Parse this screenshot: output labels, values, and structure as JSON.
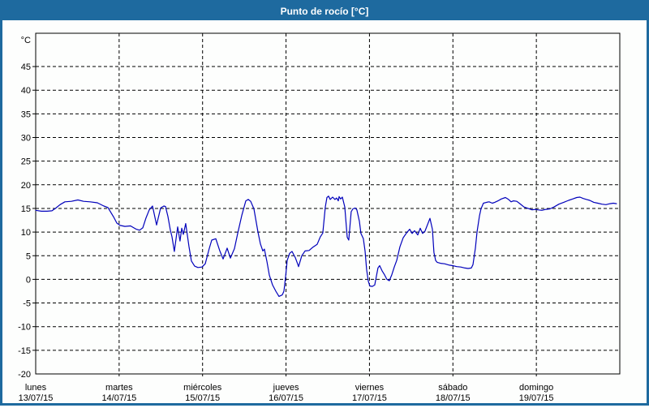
{
  "window": {
    "title": "Punto de rocío [°C]"
  },
  "colors": {
    "titlebar_bg": "#1e6a9f",
    "titlebar_text": "#ffffff",
    "window_border": "#1e6a9f",
    "plot_bg": "#ffffff",
    "grid": "#000000",
    "axis": "#000000",
    "text": "#000000",
    "line": "#0000bb"
  },
  "chart_data": {
    "type": "line",
    "title": "Punto de rocío [°C]",
    "y_unit": "°C",
    "ylim": [
      -20,
      52
    ],
    "ytick_step": 5,
    "yticks": [
      45,
      40,
      35,
      30,
      25,
      20,
      15,
      10,
      5,
      0,
      -5,
      -10,
      -15,
      -20
    ],
    "grid": "dashed",
    "legend": "none",
    "x_axis_days": [
      {
        "name": "lunes",
        "date": "13/07/15"
      },
      {
        "name": "martes",
        "date": "14/07/15"
      },
      {
        "name": "miércoles",
        "date": "15/07/15"
      },
      {
        "name": "jueves",
        "date": "16/07/15"
      },
      {
        "name": "viernes",
        "date": "17/07/15"
      },
      {
        "name": "sábado",
        "date": "18/07/15"
      },
      {
        "name": "domingo",
        "date": "19/07/15"
      }
    ],
    "series": [
      {
        "name": "Punto de rocío",
        "color": "#0000bb",
        "x_unit": "days_from_2015-07-13",
        "points": [
          [
            0.0,
            14.6
          ],
          [
            0.068,
            14.4
          ],
          [
            0.136,
            14.4
          ],
          [
            0.194,
            14.5
          ],
          [
            0.243,
            15.1
          ],
          [
            0.292,
            15.8
          ],
          [
            0.35,
            16.4
          ],
          [
            0.428,
            16.5
          ],
          [
            0.506,
            16.8
          ],
          [
            0.574,
            16.5
          ],
          [
            0.651,
            16.4
          ],
          [
            0.739,
            16.2
          ],
          [
            0.817,
            15.5
          ],
          [
            0.865,
            15.2
          ],
          [
            0.933,
            13.2
          ],
          [
            0.972,
            11.9
          ],
          [
            1.011,
            11.4
          ],
          [
            1.069,
            11.2
          ],
          [
            1.137,
            11.3
          ],
          [
            1.206,
            10.6
          ],
          [
            1.244,
            10.4
          ],
          [
            1.283,
            10.9
          ],
          [
            1.322,
            13.0
          ],
          [
            1.361,
            14.7
          ],
          [
            1.4,
            15.5
          ],
          [
            1.449,
            11.5
          ],
          [
            1.497,
            15.1
          ],
          [
            1.536,
            15.5
          ],
          [
            1.556,
            15.4
          ],
          [
            1.585,
            13.3
          ],
          [
            1.614,
            10.4
          ],
          [
            1.633,
            9.0
          ],
          [
            1.662,
            5.9
          ],
          [
            1.701,
            11.1
          ],
          [
            1.73,
            8.1
          ],
          [
            1.75,
            10.8
          ],
          [
            1.769,
            9.5
          ],
          [
            1.798,
            11.8
          ],
          [
            1.837,
            7.0
          ],
          [
            1.866,
            3.9
          ],
          [
            1.905,
            2.8
          ],
          [
            1.944,
            2.5
          ],
          [
            1.993,
            2.6
          ],
          [
            2.032,
            3.3
          ],
          [
            2.08,
            6.5
          ],
          [
            2.11,
            8.3
          ],
          [
            2.158,
            8.6
          ],
          [
            2.207,
            6.0
          ],
          [
            2.246,
            4.3
          ],
          [
            2.294,
            6.6
          ],
          [
            2.333,
            4.5
          ],
          [
            2.382,
            6.5
          ],
          [
            2.421,
            9.7
          ],
          [
            2.469,
            13.5
          ],
          [
            2.518,
            16.6
          ],
          [
            2.547,
            16.9
          ],
          [
            2.576,
            16.5
          ],
          [
            2.615,
            14.9
          ],
          [
            2.664,
            10.0
          ],
          [
            2.693,
            7.5
          ],
          [
            2.722,
            6.0
          ],
          [
            2.741,
            6.4
          ],
          [
            2.771,
            3.8
          ],
          [
            2.8,
            0.9
          ],
          [
            2.839,
            -1.2
          ],
          [
            2.878,
            -2.5
          ],
          [
            2.916,
            -3.6
          ],
          [
            2.955,
            -3.3
          ],
          [
            2.975,
            -2.5
          ],
          [
            2.994,
            0.5
          ],
          [
            3.014,
            4.0
          ],
          [
            3.043,
            5.5
          ],
          [
            3.072,
            5.9
          ],
          [
            3.111,
            4.6
          ],
          [
            3.14,
            3.2
          ],
          [
            3.15,
            2.7
          ],
          [
            3.189,
            5.0
          ],
          [
            3.228,
            6.0
          ],
          [
            3.276,
            6.1
          ],
          [
            3.315,
            6.7
          ],
          [
            3.373,
            7.4
          ],
          [
            3.412,
            9.0
          ],
          [
            3.441,
            9.8
          ],
          [
            3.471,
            15.3
          ],
          [
            3.49,
            17.3
          ],
          [
            3.51,
            17.6
          ],
          [
            3.529,
            16.9
          ],
          [
            3.558,
            17.4
          ],
          [
            3.587,
            16.9
          ],
          [
            3.606,
            17.2
          ],
          [
            3.626,
            16.6
          ],
          [
            3.636,
            17.5
          ],
          [
            3.655,
            17.0
          ],
          [
            3.675,
            17.4
          ],
          [
            3.704,
            15.3
          ],
          [
            3.733,
            8.9
          ],
          [
            3.752,
            8.3
          ],
          [
            3.781,
            14.3
          ],
          [
            3.801,
            14.9
          ],
          [
            3.83,
            15.1
          ],
          [
            3.849,
            14.7
          ],
          [
            3.879,
            12.3
          ],
          [
            3.898,
            9.7
          ],
          [
            3.927,
            8.6
          ],
          [
            3.947,
            6.0
          ],
          [
            3.966,
            2.1
          ],
          [
            3.986,
            -0.4
          ],
          [
            4.005,
            -1.4
          ],
          [
            4.034,
            -1.5
          ],
          [
            4.063,
            -1.2
          ],
          [
            4.102,
            2.4
          ],
          [
            4.122,
            2.9
          ],
          [
            4.151,
            1.8
          ],
          [
            4.18,
            1.0
          ],
          [
            4.209,
            0.0
          ],
          [
            4.238,
            -0.3
          ],
          [
            4.268,
            1.0
          ],
          [
            4.297,
            2.6
          ],
          [
            4.326,
            4.0
          ],
          [
            4.365,
            6.9
          ],
          [
            4.404,
            8.8
          ],
          [
            4.443,
            9.8
          ],
          [
            4.482,
            10.6
          ],
          [
            4.511,
            9.7
          ],
          [
            4.54,
            10.3
          ],
          [
            4.579,
            9.4
          ],
          [
            4.608,
            10.8
          ],
          [
            4.637,
            9.7
          ],
          [
            4.666,
            10.2
          ],
          [
            4.725,
            12.9
          ],
          [
            4.754,
            10.6
          ],
          [
            4.773,
            5.7
          ],
          [
            4.793,
            4.0
          ],
          [
            4.812,
            3.6
          ],
          [
            4.851,
            3.4
          ],
          [
            4.9,
            3.3
          ],
          [
            4.958,
            3.0
          ],
          [
            4.997,
            2.9
          ],
          [
            5.046,
            2.7
          ],
          [
            5.094,
            2.6
          ],
          [
            5.143,
            2.4
          ],
          [
            5.182,
            2.3
          ],
          [
            5.221,
            2.4
          ],
          [
            5.24,
            3.1
          ],
          [
            5.269,
            6.6
          ],
          [
            5.289,
            10.0
          ],
          [
            5.318,
            13.4
          ],
          [
            5.337,
            14.9
          ],
          [
            5.366,
            16.1
          ],
          [
            5.405,
            16.3
          ],
          [
            5.434,
            16.4
          ],
          [
            5.473,
            16.1
          ],
          [
            5.502,
            16.3
          ],
          [
            5.541,
            16.6
          ],
          [
            5.58,
            17.0
          ],
          [
            5.629,
            17.3
          ],
          [
            5.667,
            16.9
          ],
          [
            5.697,
            16.4
          ],
          [
            5.726,
            16.6
          ],
          [
            5.765,
            16.5
          ],
          [
            5.803,
            16.0
          ],
          [
            5.852,
            15.3
          ],
          [
            5.901,
            15.0
          ],
          [
            5.949,
            14.7
          ],
          [
            5.988,
            14.8
          ],
          [
            6.017,
            14.7
          ],
          [
            6.066,
            14.6
          ],
          [
            6.114,
            14.8
          ],
          [
            6.163,
            14.9
          ],
          [
            6.212,
            15.3
          ],
          [
            6.27,
            15.9
          ],
          [
            6.328,
            16.3
          ],
          [
            6.387,
            16.7
          ],
          [
            6.435,
            17.0
          ],
          [
            6.484,
            17.3
          ],
          [
            6.523,
            17.4
          ],
          [
            6.562,
            17.1
          ],
          [
            6.601,
            16.9
          ],
          [
            6.639,
            16.7
          ],
          [
            6.688,
            16.3
          ],
          [
            6.737,
            16.1
          ],
          [
            6.785,
            15.9
          ],
          [
            6.834,
            15.8
          ],
          [
            6.883,
            16.0
          ],
          [
            6.922,
            16.1
          ],
          [
            6.96,
            16.0
          ]
        ]
      }
    ]
  }
}
